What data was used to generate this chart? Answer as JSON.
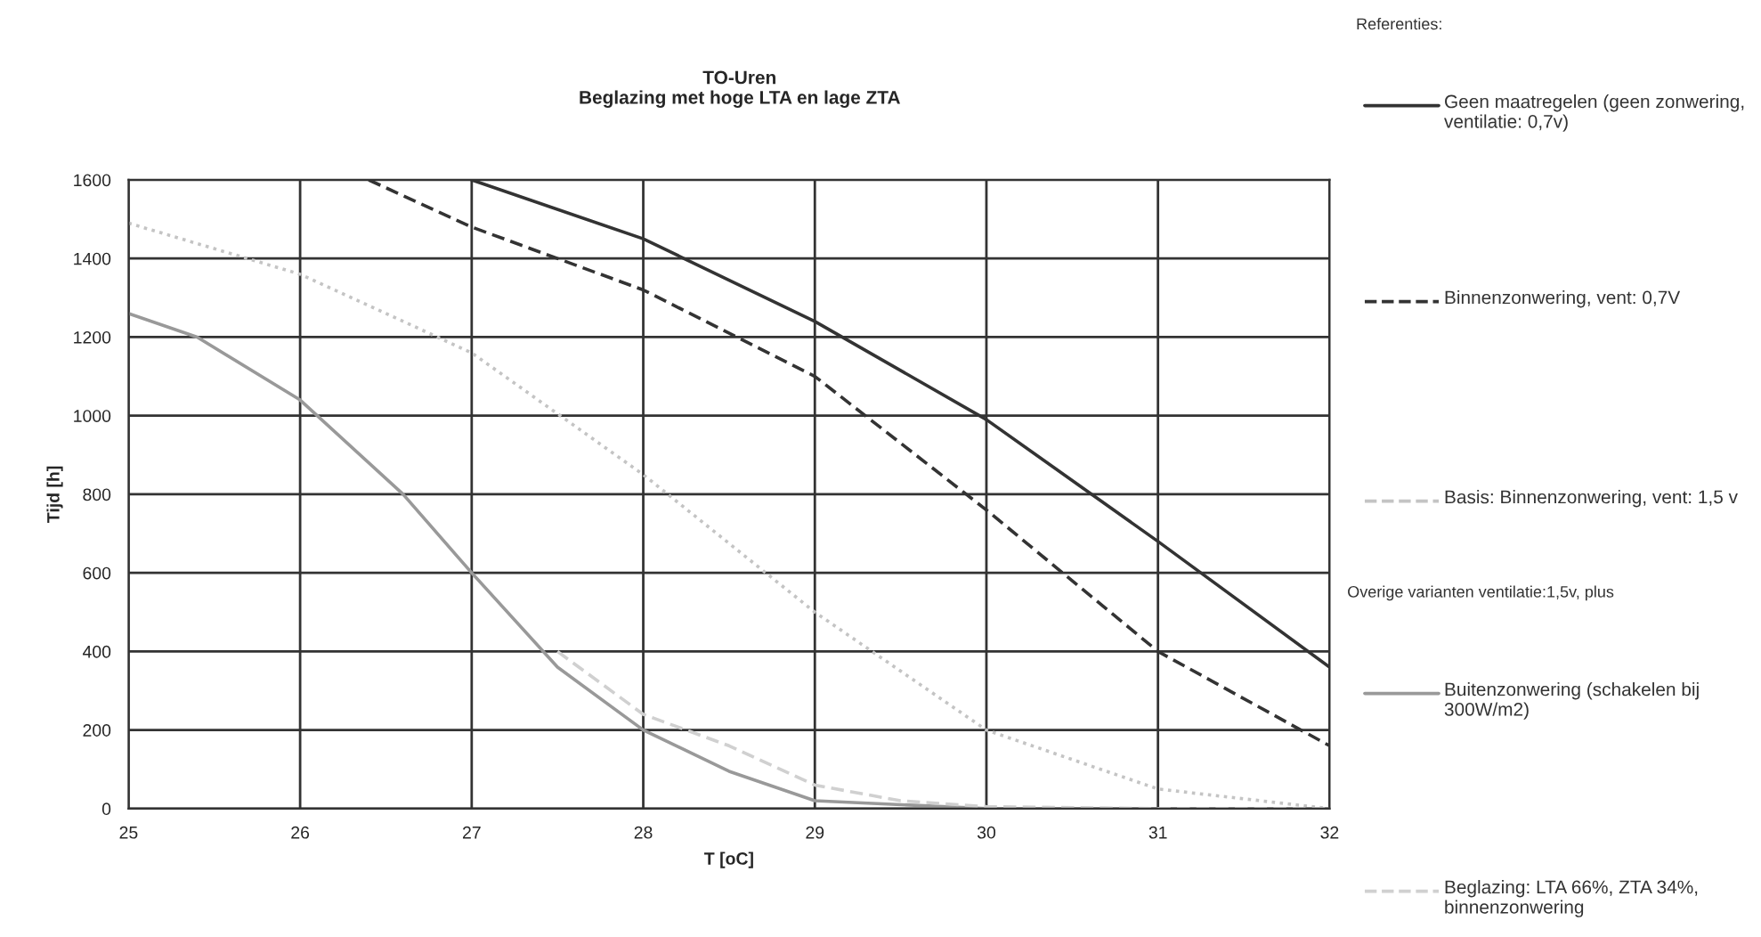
{
  "chart_data": {
    "type": "line",
    "title": "TO-Uren",
    "subtitle": "Beglazing met hoge LTA en lage ZTA",
    "xlabel": "T [oC]",
    "ylabel": "Tijd [h]",
    "annotations": [
      "Referenties:",
      "Overige varianten ventilatie:1,5v, plus"
    ],
    "xlim": [
      25,
      32
    ],
    "xticks": [
      25,
      26,
      27,
      28,
      29,
      30,
      31,
      32
    ],
    "ylim": [
      0,
      1600
    ],
    "yticks": [
      0,
      200,
      400,
      600,
      800,
      1000,
      1200,
      1400,
      1600
    ],
    "grid": true,
    "legend": "right",
    "marker": "none",
    "series": [
      {
        "name": "Geen maatregelen (geen zonwering, ventilatie: 0,7v)",
        "color": "#333333",
        "line_style": "solid",
        "x": [
          27,
          28,
          29,
          30,
          31,
          32
        ],
        "values": [
          1600,
          1450,
          1240,
          990,
          680,
          360
        ]
      },
      {
        "name": "Binnenzonwering, vent: 0,7V",
        "color": "#333333",
        "line_style": "dashed",
        "x": [
          26.4,
          27,
          28,
          29,
          30,
          31,
          32
        ],
        "values": [
          1600,
          1480,
          1320,
          1100,
          760,
          400,
          160
        ]
      },
      {
        "name": "Basis: Binnenzonwering, vent: 1,5 v",
        "color": "#c4c4c4",
        "line_style": "dotted",
        "x": [
          25,
          26,
          27,
          28,
          29,
          30,
          31,
          32
        ],
        "values": [
          1490,
          1360,
          1160,
          850,
          500,
          200,
          50,
          0
        ]
      },
      {
        "name": "Buitenzonwering (schakelen bij 300W/m2)",
        "color": "#999999",
        "line_style": "solid",
        "x": [
          25,
          25.4,
          26,
          26.6,
          27,
          27.5,
          28,
          28.5,
          29,
          30,
          31,
          32
        ],
        "values": [
          1260,
          1200,
          1040,
          800,
          600,
          360,
          200,
          95,
          20,
          0,
          0,
          0
        ]
      },
      {
        "name": "Beglazing: LTA 66%, ZTA 34%, binnenzonwering",
        "color": "#d0d0d0",
        "line_style": "dashed",
        "x": [
          27.5,
          28,
          28.5,
          29,
          29.5,
          30,
          31,
          32
        ],
        "values": [
          400,
          240,
          160,
          60,
          20,
          5,
          0,
          0
        ]
      }
    ]
  }
}
